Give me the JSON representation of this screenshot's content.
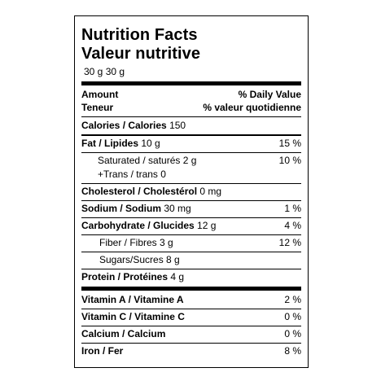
{
  "title_en": "Nutrition Facts",
  "title_fr": "Valeur nutritive",
  "serving": "30 g 30 g",
  "header": {
    "amount_en": "Amount",
    "amount_fr": "Teneur",
    "dv_en": "% Daily Value",
    "dv_fr": "% valeur quotidienne"
  },
  "calories": {
    "label": "Calories / Calories",
    "value": "150"
  },
  "fat": {
    "label": "Fat / Lipides",
    "amount": "10 g",
    "dv": "15 %"
  },
  "saturated": {
    "label": "Saturated / saturés",
    "amount": "2 g",
    "dv": "10 %"
  },
  "trans": {
    "label": "+Trans / trans",
    "amount": "0"
  },
  "cholesterol": {
    "label": "Cholesterol / Cholestérol",
    "amount": "0 mg"
  },
  "sodium": {
    "label": "Sodium / Sodium",
    "amount": "30 mg",
    "dv": "1 %"
  },
  "carbohydrate": {
    "label": "Carbohydrate / Glucides",
    "amount": "12 g",
    "dv": "4 %"
  },
  "fiber": {
    "label": "Fiber / Fibres",
    "amount": "3 g",
    "dv": "12 %"
  },
  "sugars": {
    "label": "Sugars/Sucres",
    "amount": "8 g"
  },
  "protein": {
    "label": "Protein / Protéines",
    "amount": "4 g"
  },
  "vitamin_a": {
    "label": "Vitamin A / Vitamine A",
    "dv": "2 %"
  },
  "vitamin_c": {
    "label": "Vitamin C / Vitamine C",
    "dv": "0 %"
  },
  "calcium": {
    "label": "Calcium / Calcium",
    "dv": "0 %"
  },
  "iron": {
    "label": "Iron / Fer",
    "dv": "8 %"
  }
}
